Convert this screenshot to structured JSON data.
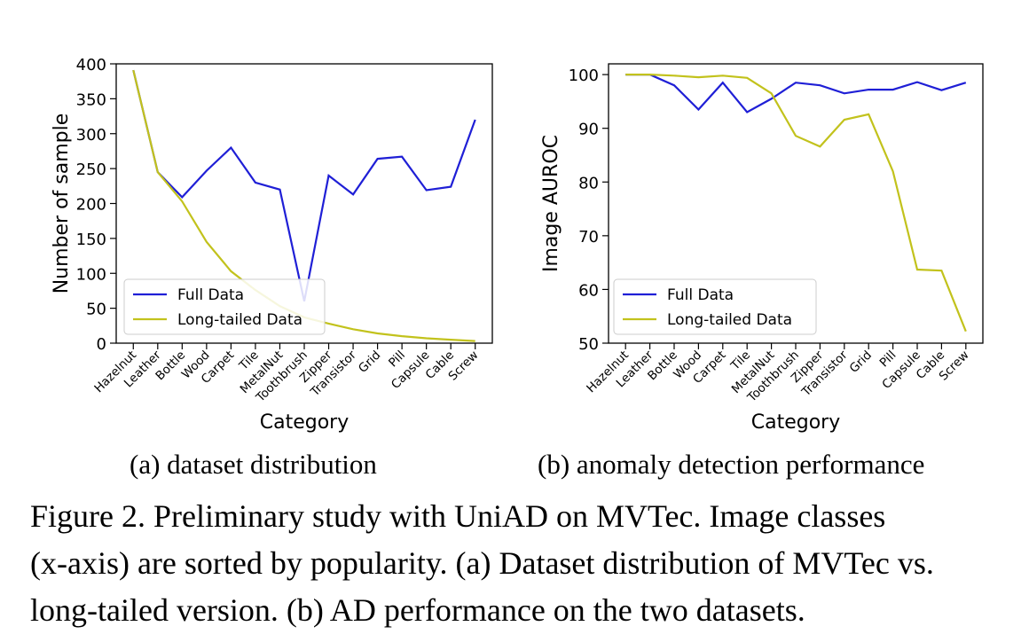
{
  "chart_data": [
    {
      "type": "line",
      "xlabel": "Category",
      "ylabel": "Number of sample",
      "ylim": [
        0,
        400
      ],
      "yticks": [
        0,
        50,
        100,
        150,
        200,
        250,
        300,
        350,
        400
      ],
      "categories": [
        "Hazelnut",
        "Leather",
        "Bottle",
        "Wood",
        "Carpet",
        "Tile",
        "MetalNut",
        "Toothbrush",
        "Zipper",
        "Transistor",
        "Grid",
        "Pill",
        "Capsule",
        "Cable",
        "Screw"
      ],
      "series": [
        {
          "name": "Full Data",
          "color": "#1f1fd6",
          "values": [
            391,
            245,
            209,
            247,
            280,
            230,
            220,
            60,
            240,
            213,
            264,
            267,
            219,
            224,
            320
          ]
        },
        {
          "name": "Long-tailed Data",
          "color": "#c2c21c",
          "values": [
            391,
            245,
            203,
            145,
            103,
            76,
            53,
            37,
            28,
            20,
            14,
            10,
            7,
            5,
            3
          ]
        }
      ],
      "legend": "lower-left",
      "subcaption": "(a) dataset distribution"
    },
    {
      "type": "line",
      "xlabel": "Category",
      "ylabel": "Image AUROC",
      "ylim": [
        50,
        102
      ],
      "yticks": [
        50,
        60,
        70,
        80,
        90,
        100
      ],
      "categories": [
        "Hazelnut",
        "Leather",
        "Bottle",
        "Wood",
        "Carpet",
        "Tile",
        "MetalNut",
        "Toothbrush",
        "Zipper",
        "Transistor",
        "Grid",
        "Pill",
        "Capsule",
        "Cable",
        "Screw"
      ],
      "series": [
        {
          "name": "Full Data",
          "color": "#1f1fd6",
          "values": [
            100,
            100,
            98,
            93.5,
            98.5,
            93,
            95.5,
            98.5,
            98,
            96.5,
            97.2,
            97.2,
            98.6,
            97.1,
            98.5
          ]
        },
        {
          "name": "Long-tailed Data",
          "color": "#c2c21c",
          "values": [
            100,
            100,
            99.8,
            99.5,
            99.8,
            99.4,
            96.5,
            88.6,
            86.6,
            91.6,
            92.6,
            82,
            63.7,
            63.5,
            52.2
          ]
        }
      ],
      "legend": "lower-left",
      "subcaption": "(b) anomaly detection performance"
    }
  ],
  "caption": {
    "line1": "Figure 2. Preliminary study with UniAD on MVTec. Image classes",
    "line2": "(x-axis) are sorted by popularity. (a) Dataset distribution of MVTec vs.",
    "line3": "long-tailed version. (b) AD performance on the two datasets."
  }
}
